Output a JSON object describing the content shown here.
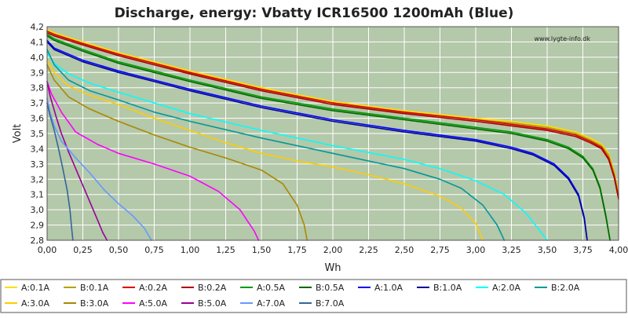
{
  "chart_data": {
    "type": "line",
    "title": "Discharge, energy: Vbatty ICR16500 1200mAh (Blue)",
    "xlabel": "Wh",
    "ylabel": "Volt",
    "watermark": "www.lygte-info.dk",
    "xlim": [
      0,
      4
    ],
    "ylim": [
      2.8,
      4.2
    ],
    "xticks": [
      "0,00",
      "0,25",
      "0,50",
      "0,75",
      "1,00",
      "1,25",
      "1,50",
      "1,75",
      "2,00",
      "2,25",
      "2,50",
      "2,75",
      "3,00",
      "3,25",
      "3,50",
      "3,75",
      "4,00"
    ],
    "yticks": [
      "2,8",
      "2,9",
      "3,0",
      "3,1",
      "3,2",
      "3,3",
      "3,4",
      "3,5",
      "3,6",
      "3,7",
      "3,8",
      "3,9",
      "4,0",
      "4,1",
      "4,2"
    ],
    "grid": true,
    "legend_position": "bottom",
    "plot_background": "#b4c8aa",
    "series": [
      {
        "name": "A:0.1A",
        "color": "#ffdd00",
        "x": [
          0,
          0.05,
          0.25,
          0.5,
          0.75,
          1.0,
          1.5,
          2.0,
          2.5,
          3.0,
          3.25,
          3.5,
          3.7,
          3.8,
          3.88,
          3.93,
          3.97,
          4.0
        ],
        "y": [
          4.18,
          4.16,
          4.1,
          4.03,
          3.97,
          3.91,
          3.8,
          3.71,
          3.65,
          3.6,
          3.58,
          3.55,
          3.51,
          3.47,
          3.43,
          3.37,
          3.25,
          3.1
        ]
      },
      {
        "name": "B:0.1A",
        "color": "#b8a000",
        "x": [
          0,
          0.05,
          0.25,
          0.5,
          0.75,
          1.0,
          1.5,
          2.0,
          2.5,
          3.0,
          3.25,
          3.5,
          3.7,
          3.8,
          3.88,
          3.93,
          3.97,
          4.0
        ],
        "y": [
          4.17,
          4.15,
          4.09,
          4.02,
          3.96,
          3.9,
          3.79,
          3.7,
          3.64,
          3.59,
          3.57,
          3.54,
          3.5,
          3.46,
          3.42,
          3.36,
          3.24,
          3.09
        ]
      },
      {
        "name": "A:0.2A",
        "color": "#dd0000",
        "x": [
          0,
          0.05,
          0.25,
          0.5,
          0.75,
          1.0,
          1.5,
          2.0,
          2.5,
          3.0,
          3.25,
          3.5,
          3.7,
          3.8,
          3.88,
          3.93,
          3.97,
          4.0
        ],
        "y": [
          4.17,
          4.15,
          4.09,
          4.02,
          3.96,
          3.9,
          3.79,
          3.7,
          3.64,
          3.59,
          3.56,
          3.53,
          3.49,
          3.45,
          3.41,
          3.34,
          3.22,
          3.08
        ]
      },
      {
        "name": "B:0.2A",
        "color": "#aa0000",
        "x": [
          0,
          0.05,
          0.25,
          0.5,
          0.75,
          1.0,
          1.5,
          2.0,
          2.5,
          3.0,
          3.25,
          3.5,
          3.7,
          3.8,
          3.88,
          3.93,
          3.97,
          4.0
        ],
        "y": [
          4.16,
          4.14,
          4.08,
          4.01,
          3.95,
          3.89,
          3.78,
          3.69,
          3.63,
          3.58,
          3.55,
          3.52,
          3.48,
          3.44,
          3.4,
          3.33,
          3.21,
          3.07
        ]
      },
      {
        "name": "A:0.5A",
        "color": "#009900",
        "x": [
          0,
          0.05,
          0.25,
          0.5,
          0.75,
          1.0,
          1.5,
          2.0,
          2.5,
          3.0,
          3.25,
          3.5,
          3.65,
          3.75,
          3.82,
          3.87,
          3.91,
          3.94
        ],
        "y": [
          4.15,
          4.12,
          4.05,
          3.97,
          3.91,
          3.85,
          3.74,
          3.66,
          3.6,
          3.54,
          3.51,
          3.46,
          3.41,
          3.35,
          3.27,
          3.15,
          2.97,
          2.8
        ]
      },
      {
        "name": "B:0.5A",
        "color": "#006600",
        "x": [
          0,
          0.05,
          0.25,
          0.5,
          0.75,
          1.0,
          1.5,
          2.0,
          2.5,
          3.0,
          3.25,
          3.5,
          3.65,
          3.75,
          3.82,
          3.87,
          3.91,
          3.94
        ],
        "y": [
          4.14,
          4.11,
          4.04,
          3.96,
          3.9,
          3.84,
          3.73,
          3.65,
          3.59,
          3.53,
          3.5,
          3.45,
          3.4,
          3.34,
          3.26,
          3.14,
          2.96,
          2.8
        ]
      },
      {
        "name": "A:1.0A",
        "color": "#0000ff",
        "x": [
          0,
          0.05,
          0.25,
          0.5,
          0.75,
          1.0,
          1.5,
          2.0,
          2.5,
          3.0,
          3.25,
          3.4,
          3.55,
          3.65,
          3.72,
          3.76,
          3.78
        ],
        "y": [
          4.11,
          4.06,
          3.98,
          3.91,
          3.85,
          3.79,
          3.68,
          3.59,
          3.52,
          3.46,
          3.41,
          3.37,
          3.3,
          3.21,
          3.1,
          2.95,
          2.8
        ]
      },
      {
        "name": "B:1.0A",
        "color": "#000099",
        "x": [
          0,
          0.05,
          0.25,
          0.5,
          0.75,
          1.0,
          1.5,
          2.0,
          2.5,
          3.0,
          3.25,
          3.4,
          3.55,
          3.65,
          3.72,
          3.76,
          3.78
        ],
        "y": [
          4.1,
          4.05,
          3.97,
          3.9,
          3.84,
          3.78,
          3.67,
          3.58,
          3.51,
          3.45,
          3.4,
          3.36,
          3.29,
          3.2,
          3.09,
          2.94,
          2.8
        ]
      },
      {
        "name": "A:2.0A",
        "color": "#00ffff",
        "x": [
          0,
          0.05,
          0.15,
          0.3,
          0.5,
          0.75,
          1.0,
          1.5,
          2.0,
          2.5,
          2.75,
          3.0,
          3.2,
          3.35,
          3.45,
          3.5
        ],
        "y": [
          4.03,
          3.96,
          3.89,
          3.83,
          3.77,
          3.7,
          3.63,
          3.52,
          3.42,
          3.33,
          3.27,
          3.19,
          3.1,
          2.98,
          2.86,
          2.8
        ]
      },
      {
        "name": "B:2.0A",
        "color": "#009999",
        "x": [
          0,
          0.05,
          0.15,
          0.3,
          0.5,
          0.75,
          1.0,
          1.5,
          2.0,
          2.5,
          2.75,
          2.9,
          3.05,
          3.15,
          3.2
        ],
        "y": [
          4.05,
          3.95,
          3.85,
          3.78,
          3.72,
          3.64,
          3.58,
          3.47,
          3.37,
          3.27,
          3.2,
          3.14,
          3.03,
          2.9,
          2.8
        ]
      },
      {
        "name": "A:3.0A",
        "color": "#ffcc00",
        "x": [
          0,
          0.05,
          0.15,
          0.3,
          0.5,
          0.75,
          1.0,
          1.25,
          1.5,
          1.75,
          2.0,
          2.25,
          2.5,
          2.75,
          2.9,
          3.0,
          3.05
        ],
        "y": [
          3.98,
          3.9,
          3.81,
          3.75,
          3.69,
          3.6,
          3.52,
          3.44,
          3.37,
          3.32,
          3.28,
          3.23,
          3.17,
          3.09,
          3.01,
          2.91,
          2.8
        ]
      },
      {
        "name": "B:3.0A",
        "color": "#aa8800",
        "x": [
          0,
          0.05,
          0.15,
          0.3,
          0.5,
          0.75,
          1.0,
          1.25,
          1.5,
          1.65,
          1.75,
          1.8,
          1.82
        ],
        "y": [
          3.95,
          3.85,
          3.74,
          3.66,
          3.58,
          3.49,
          3.41,
          3.34,
          3.26,
          3.17,
          3.03,
          2.9,
          2.8
        ]
      },
      {
        "name": "A:5.0A",
        "color": "#ff00ff",
        "x": [
          0,
          0.03,
          0.1,
          0.2,
          0.35,
          0.5,
          0.75,
          1.0,
          1.2,
          1.35,
          1.45,
          1.48
        ],
        "y": [
          3.84,
          3.76,
          3.64,
          3.51,
          3.43,
          3.37,
          3.3,
          3.22,
          3.12,
          3.0,
          2.86,
          2.8
        ]
      },
      {
        "name": "B:5.0A",
        "color": "#990099",
        "x": [
          0,
          0.02,
          0.06,
          0.1,
          0.15,
          0.2,
          0.25,
          0.3,
          0.35,
          0.39,
          0.42
        ],
        "y": [
          3.84,
          3.75,
          3.62,
          3.5,
          3.38,
          3.27,
          3.16,
          3.05,
          2.94,
          2.85,
          2.8
        ]
      },
      {
        "name": "A:7.0A",
        "color": "#6699ff",
        "x": [
          0,
          0.02,
          0.05,
          0.1,
          0.2,
          0.3,
          0.4,
          0.5,
          0.6,
          0.68,
          0.73
        ],
        "y": [
          3.73,
          3.64,
          3.55,
          3.45,
          3.34,
          3.24,
          3.13,
          3.04,
          2.96,
          2.88,
          2.8
        ]
      },
      {
        "name": "B:7.0A",
        "color": "#336699",
        "x": [
          0,
          0.02,
          0.05,
          0.08,
          0.11,
          0.14,
          0.16,
          0.17,
          0.18
        ],
        "y": [
          3.7,
          3.62,
          3.52,
          3.4,
          3.27,
          3.13,
          3.0,
          2.9,
          2.8
        ]
      }
    ]
  }
}
